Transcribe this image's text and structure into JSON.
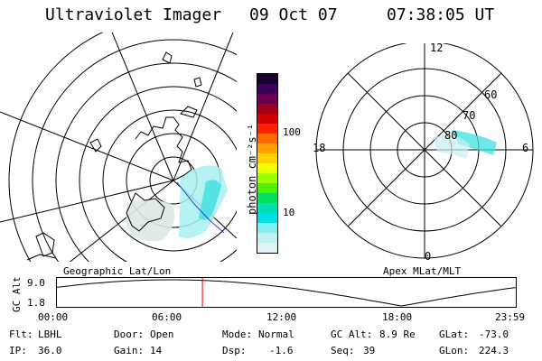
{
  "header": {
    "instrument": "Ultraviolet Imager",
    "date": "09 Oct 07",
    "time": "07:38:05 UT"
  },
  "left_map": {
    "caption": "Geographic Lat/Lon"
  },
  "right_map": {
    "caption": "Apex MLat/MLT",
    "mlt_labels": {
      "top": "12",
      "left": "18",
      "right": "6",
      "bottom": "0"
    },
    "lat_labels": [
      "60",
      "70",
      "80"
    ]
  },
  "colorbar": {
    "unit_label": "photon cm⁻²s⁻¹",
    "ticks": [
      "100",
      "10"
    ],
    "colors": [
      "#1a0030",
      "#3a0060",
      "#6a0050",
      "#a00020",
      "#d00000",
      "#ff2000",
      "#ff6a00",
      "#ffa000",
      "#ffd000",
      "#f0ff00",
      "#a0ff00",
      "#50f000",
      "#00e060",
      "#00e0b0",
      "#00e0e0",
      "#80f0f0",
      "#c0f0f0",
      "#e0f4f4"
    ]
  },
  "orbit_plot": {
    "ylabel": "GC Alt",
    "ymax_label": "9.0",
    "ymin_label": "1.8",
    "x_ticks": [
      "00:00",
      "06:00",
      "12:00",
      "18:00",
      "23:59"
    ],
    "marker_hour": 7.63
  },
  "footer": {
    "row1": [
      {
        "key": "Flt:",
        "val": "LBHL"
      },
      {
        "key": "Door:",
        "val": "Open"
      },
      {
        "key": "Mode:",
        "val": "Normal"
      },
      {
        "key": "GC Alt:",
        "val": "8.9 Re"
      },
      {
        "key": "GLat:",
        "val": "-73.0"
      }
    ],
    "row2": [
      {
        "key": "IP:",
        "val": "36.0"
      },
      {
        "key": "Gain:",
        "val": "14"
      },
      {
        "key": "Dsp:",
        "val": "-1.6"
      },
      {
        "key": "Seq:",
        "val": "39"
      },
      {
        "key": "GLon:",
        "val": "224.3"
      }
    ]
  },
  "colors": {
    "aurora": "#40e0e0",
    "marker": "#e00000",
    "track": "#2040ff"
  }
}
